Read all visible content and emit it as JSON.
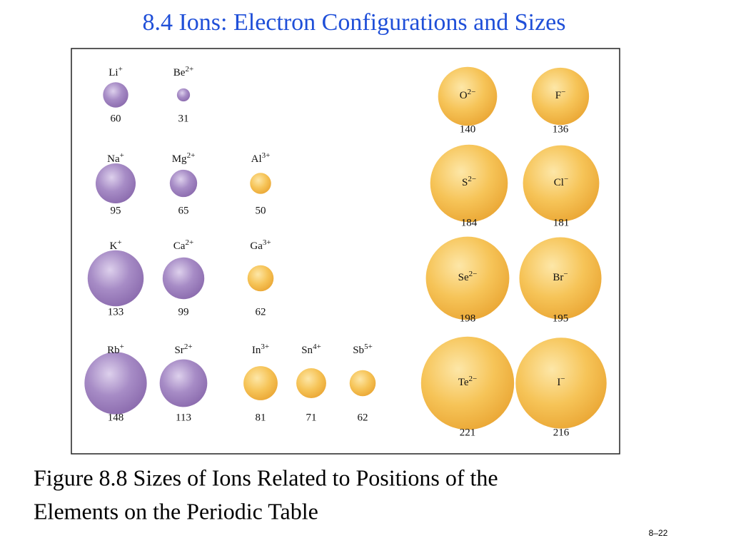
{
  "title": "8.4 Ions: Electron Configurations and Sizes",
  "figure": {
    "ions": [
      {
        "symbol": "Li",
        "charge": "+",
        "radius": 60
      },
      {
        "symbol": "Be",
        "charge": "2+",
        "radius": 31
      },
      {
        "symbol": "Na",
        "charge": "+",
        "radius": 95
      },
      {
        "symbol": "Mg",
        "charge": "2+",
        "radius": 65
      },
      {
        "symbol": "Al",
        "charge": "3+",
        "radius": 50
      },
      {
        "symbol": "K",
        "charge": "+",
        "radius": 133
      },
      {
        "symbol": "Ca",
        "charge": "2+",
        "radius": 99
      },
      {
        "symbol": "Ga",
        "charge": "3+",
        "radius": 62
      },
      {
        "symbol": "Rb",
        "charge": "+",
        "radius": 148
      },
      {
        "symbol": "Sr",
        "charge": "2+",
        "radius": 113
      },
      {
        "symbol": "In",
        "charge": "3+",
        "radius": 81
      },
      {
        "symbol": "Sn",
        "charge": "4+",
        "radius": 71
      },
      {
        "symbol": "Sb",
        "charge": "5+",
        "radius": 62
      },
      {
        "symbol": "O",
        "charge": "2−",
        "radius": 140
      },
      {
        "symbol": "F",
        "charge": "−",
        "radius": 136
      },
      {
        "symbol": "S",
        "charge": "2−",
        "radius": 184
      },
      {
        "symbol": "Cl",
        "charge": "−",
        "radius": 181
      },
      {
        "symbol": "Se",
        "charge": "2−",
        "radius": 198
      },
      {
        "symbol": "Br",
        "charge": "−",
        "radius": 195
      },
      {
        "symbol": "Te",
        "charge": "2−",
        "radius": 221
      },
      {
        "symbol": "I",
        "charge": "−",
        "radius": 216
      }
    ]
  },
  "caption": [
    "Figure 8.8  Sizes of Ions Related to Positions of the",
    "Elements on the Periodic Table"
  ],
  "slide_number": "8–22"
}
